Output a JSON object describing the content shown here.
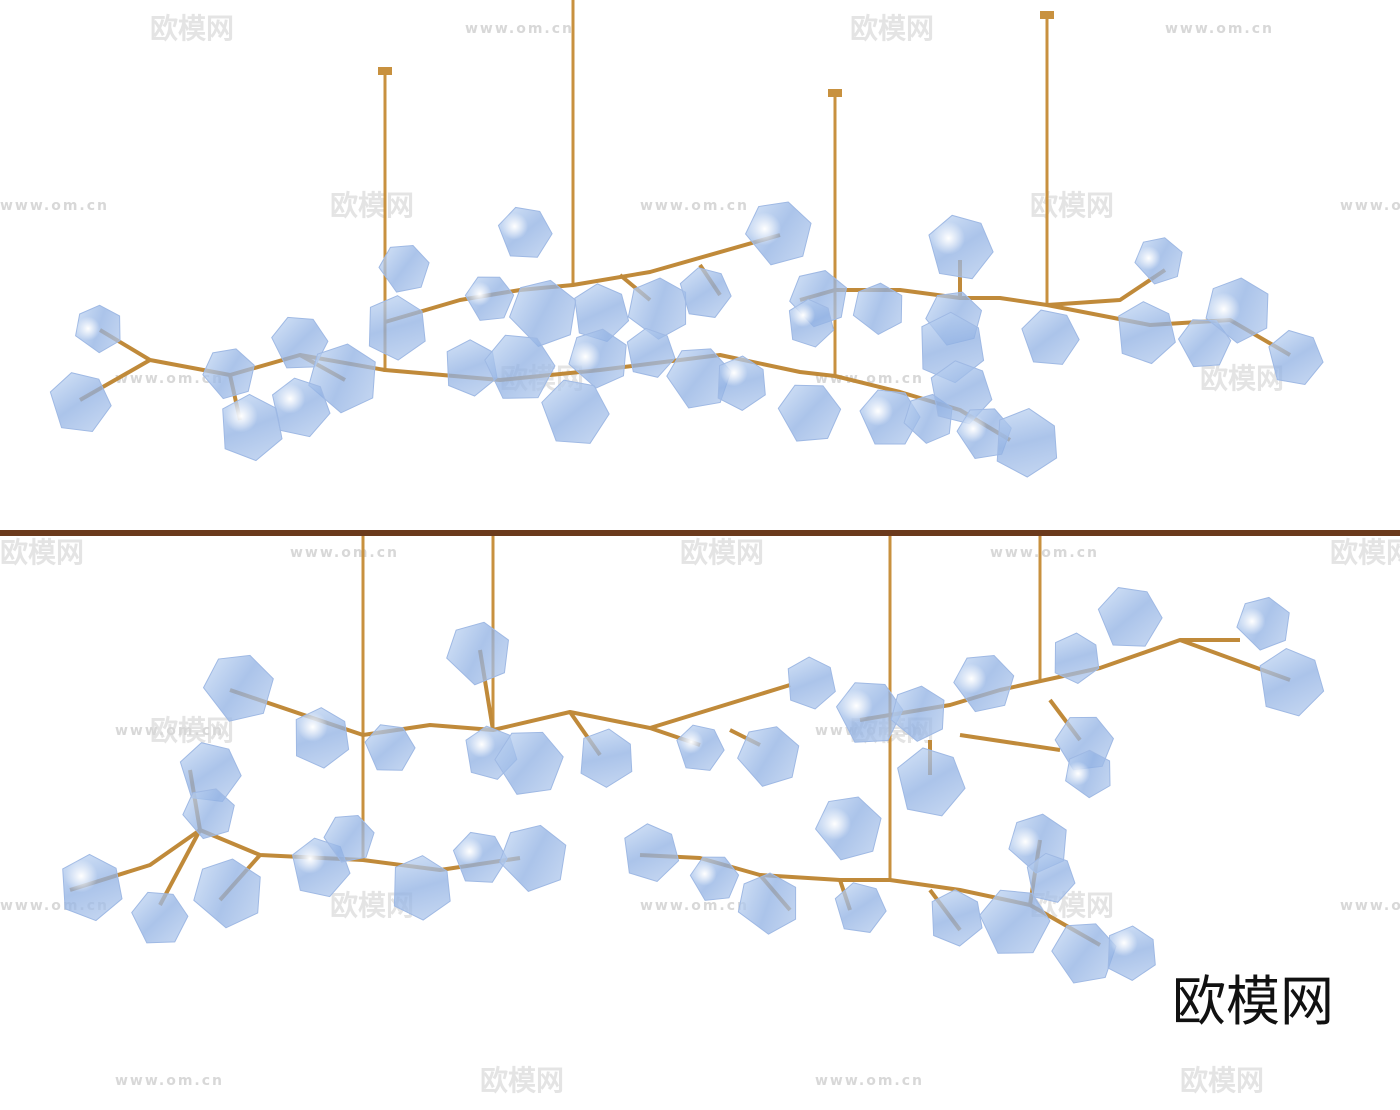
{
  "watermark": {
    "brand": "欧模网",
    "url": "www.om.cn"
  },
  "label": "欧模网"
}
